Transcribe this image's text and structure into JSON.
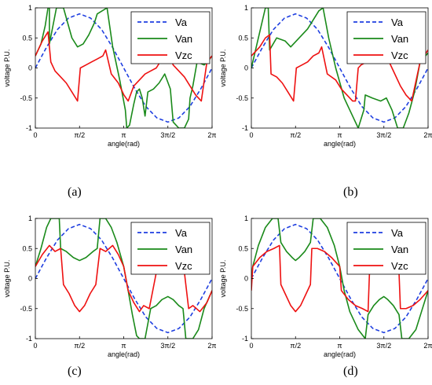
{
  "x_ticks": [
    "0",
    "π/2",
    "π",
    "3π/2",
    "2π"
  ],
  "y_ticks": [
    "1",
    "0.5",
    "0",
    "-0.5",
    "-1"
  ],
  "xlabel": "angle(rad)",
  "ylabel": "voltage P.U.",
  "colors": {
    "Va": "#1f3fe0",
    "Van": "#1a8a1a",
    "Vzc": "#ee1111"
  },
  "panels": [
    {
      "caption": "(a)"
    },
    {
      "caption": "(b)"
    },
    {
      "caption": "(c)"
    },
    {
      "caption": "(d)"
    }
  ],
  "chart_data": [
    {
      "type": "line",
      "panel": "(a)",
      "xlabel": "angle(rad)",
      "ylabel": "voltage P.U.",
      "xlim": [
        0,
        6.2832
      ],
      "ylim": [
        -1,
        1
      ],
      "legend": "top-right",
      "series": [
        {
          "name": "Va",
          "style": "dashed",
          "x": [
            0,
            0.3927,
            0.7854,
            1.1781,
            1.5708,
            1.9635,
            2.3562,
            2.7489,
            3.1416,
            3.5343,
            3.927,
            4.3197,
            4.7124,
            5.1051,
            5.4978,
            5.8905,
            6.2832
          ],
          "y": [
            0,
            0.34,
            0.64,
            0.83,
            0.9,
            0.83,
            0.64,
            0.34,
            0,
            -0.34,
            -0.64,
            -0.83,
            -0.9,
            -0.83,
            -0.64,
            -0.34,
            0
          ]
        },
        {
          "name": "Van",
          "x": [
            0,
            0.2,
            0.35,
            0.45,
            0.5,
            0.5,
            0.75,
            1.0,
            1.3,
            1.5,
            1.7,
            1.9,
            2.1,
            2.2,
            2.55,
            2.75,
            3.0,
            3.2,
            3.25,
            3.35,
            3.5,
            3.6,
            3.7,
            3.8,
            3.9,
            4.0,
            4.2,
            4.4,
            4.6,
            4.8,
            4.9,
            5.1,
            5.3,
            5.45,
            5.5,
            5.6,
            5.75,
            6.0,
            6.2,
            6.2832
          ],
          "y": [
            0.2,
            0.4,
            0.7,
            1.0,
            1.0,
            0.4,
            1.0,
            1.0,
            0.5,
            0.35,
            0.4,
            0.55,
            0.75,
            0.9,
            1.0,
            0.35,
            -0.2,
            -0.7,
            -1.0,
            -0.95,
            -0.6,
            -0.4,
            -0.35,
            -0.5,
            -0.8,
            -0.4,
            -0.35,
            -0.25,
            -0.1,
            -0.35,
            -0.9,
            -1.0,
            -1.0,
            -0.85,
            -0.5,
            -0.3,
            0.1,
            0.05,
            0.15,
            0.2
          ]
        },
        {
          "name": "Vzc",
          "x": [
            0,
            0.25,
            0.45,
            0.55,
            0.7,
            0.9,
            1.1,
            1.3,
            1.5,
            1.6,
            1.8,
            2.0,
            2.2,
            2.4,
            2.5,
            2.7,
            2.95,
            3.15,
            3.3,
            3.5,
            3.7,
            3.9,
            4.1,
            4.3,
            4.5,
            4.7,
            4.9,
            5.1,
            5.3,
            5.5,
            5.7,
            5.9,
            6.1,
            6.2832
          ],
          "y": [
            0.2,
            0.45,
            0.6,
            0.1,
            -0.05,
            -0.15,
            -0.25,
            -0.4,
            -0.55,
            0.0,
            0.05,
            0.1,
            0.15,
            0.2,
            0.3,
            -0.1,
            -0.25,
            -0.45,
            -0.55,
            -0.3,
            -0.2,
            -0.1,
            -0.05,
            0.0,
            0.15,
            0.3,
            0.05,
            -0.05,
            -0.15,
            -0.3,
            -0.45,
            -0.55,
            0.1,
            0.2
          ]
        }
      ]
    },
    {
      "type": "line",
      "panel": "(b)",
      "xlabel": "angle(rad)",
      "ylabel": "voltage P.U.",
      "xlim": [
        0,
        6.2832
      ],
      "ylim": [
        -1,
        1
      ],
      "legend": "top-right",
      "series": [
        {
          "name": "Va",
          "style": "dashed",
          "x": [
            0,
            0.3927,
            0.7854,
            1.1781,
            1.5708,
            1.9635,
            2.3562,
            2.7489,
            3.1416,
            3.5343,
            3.927,
            4.3197,
            4.7124,
            5.1051,
            5.4978,
            5.8905,
            6.2832
          ],
          "y": [
            0,
            0.34,
            0.64,
            0.83,
            0.9,
            0.83,
            0.64,
            0.34,
            0,
            -0.34,
            -0.64,
            -0.83,
            -0.9,
            -0.83,
            -0.64,
            -0.34,
            0
          ]
        },
        {
          "name": "Van",
          "x": [
            0,
            0.15,
            0.35,
            0.5,
            0.6,
            0.65,
            0.9,
            1.2,
            1.4,
            1.6,
            1.8,
            2.0,
            2.2,
            2.4,
            2.55,
            2.75,
            3.0,
            3.3,
            3.6,
            3.8,
            4.0,
            4.05,
            4.3,
            4.6,
            4.8,
            5.0,
            5.2,
            5.4,
            5.6,
            5.8,
            6.0,
            6.2832
          ],
          "y": [
            0.0,
            0.3,
            0.7,
            1.0,
            1.0,
            0.3,
            0.5,
            0.45,
            0.35,
            0.45,
            0.55,
            0.65,
            0.8,
            0.95,
            1.0,
            0.5,
            0.0,
            -0.5,
            -0.8,
            -1.0,
            -0.7,
            -0.45,
            -0.5,
            -0.55,
            -0.5,
            -0.7,
            -1.0,
            -1.0,
            -0.75,
            -0.4,
            0.1,
            0.25
          ]
        },
        {
          "name": "Vzc",
          "x": [
            0,
            0.3,
            0.5,
            0.65,
            0.7,
            0.9,
            1.1,
            1.3,
            1.5,
            1.6,
            1.8,
            2.0,
            2.2,
            2.4,
            2.5,
            2.7,
            3.0,
            3.2,
            3.4,
            3.6,
            3.7,
            3.8,
            3.9,
            4.1,
            4.3,
            4.5,
            4.6,
            4.7,
            4.9,
            5.1,
            5.3,
            5.5,
            5.7,
            6.0,
            6.2832
          ],
          "y": [
            0.2,
            0.35,
            0.5,
            0.55,
            -0.1,
            -0.15,
            -0.25,
            -0.4,
            -0.55,
            0.0,
            0.05,
            0.1,
            0.2,
            0.25,
            0.35,
            -0.1,
            -0.2,
            -0.35,
            -0.45,
            -0.55,
            -0.55,
            0.0,
            0.05,
            0.1,
            0.15,
            0.25,
            0.35,
            0.5,
            0.1,
            -0.1,
            -0.3,
            -0.45,
            -0.55,
            0.1,
            0.3
          ]
        }
      ]
    },
    {
      "type": "line",
      "panel": "(c)",
      "xlabel": "angle(rad)",
      "ylabel": "voltage P.U.",
      "xlim": [
        0,
        6.2832
      ],
      "ylim": [
        -1,
        1
      ],
      "legend": "top-right",
      "series": [
        {
          "name": "Va",
          "style": "dashed",
          "x": [
            0,
            0.3927,
            0.7854,
            1.1781,
            1.5708,
            1.9635,
            2.3562,
            2.7489,
            3.1416,
            3.5343,
            3.927,
            4.3197,
            4.7124,
            5.1051,
            5.4978,
            5.8905,
            6.2832
          ],
          "y": [
            0,
            0.34,
            0.64,
            0.83,
            0.9,
            0.83,
            0.64,
            0.34,
            0,
            -0.34,
            -0.64,
            -0.83,
            -0.9,
            -0.83,
            -0.64,
            -0.34,
            0
          ]
        },
        {
          "name": "Van",
          "x": [
            0,
            0.2,
            0.4,
            0.55,
            0.7,
            0.85,
            0.9,
            1.1,
            1.35,
            1.5708,
            1.8,
            2.05,
            2.2,
            2.3,
            2.5,
            2.7,
            2.9,
            3.1416,
            3.3,
            3.45,
            3.6,
            3.7,
            3.9,
            4.1,
            4.3,
            4.5,
            4.7124,
            4.9,
            5.1,
            5.25,
            5.35,
            5.6,
            5.8,
            6.0,
            6.2832
          ],
          "y": [
            0.2,
            0.5,
            0.85,
            1.0,
            1.0,
            1.0,
            0.5,
            0.45,
            0.35,
            0.3,
            0.35,
            0.45,
            0.5,
            1.0,
            1.0,
            0.85,
            0.6,
            0.2,
            -0.2,
            -0.6,
            -0.95,
            -1.0,
            -1.0,
            -0.5,
            -0.45,
            -0.35,
            -0.3,
            -0.35,
            -0.45,
            -0.5,
            -1.0,
            -1.0,
            -0.85,
            -0.5,
            -0.2
          ]
        },
        {
          "name": "Vzc",
          "x": [
            0,
            0.25,
            0.5,
            0.7,
            0.9,
            1.0,
            1.2,
            1.4,
            1.5708,
            1.75,
            1.95,
            2.15,
            2.3,
            2.5,
            2.75,
            2.95,
            3.1416,
            3.3,
            3.5,
            3.7,
            3.85,
            4.05,
            4.3,
            4.5,
            4.7124,
            4.9,
            5.1,
            5.3,
            5.45,
            5.6,
            5.85,
            6.1,
            6.2832
          ],
          "y": [
            0.2,
            0.4,
            0.55,
            0.45,
            0.5,
            -0.1,
            -0.25,
            -0.45,
            -0.55,
            -0.45,
            -0.25,
            -0.1,
            0.5,
            0.45,
            0.55,
            0.4,
            0.2,
            -0.2,
            -0.4,
            -0.55,
            -0.45,
            -0.5,
            0.1,
            0.25,
            0.55,
            0.35,
            0.25,
            0.1,
            -0.5,
            -0.45,
            -0.55,
            -0.4,
            -0.2
          ]
        }
      ]
    },
    {
      "type": "line",
      "panel": "(d)",
      "xlabel": "angle(rad)",
      "ylabel": "voltage P.U.",
      "xlim": [
        0,
        6.2832
      ],
      "ylim": [
        -1,
        1
      ],
      "legend": "top-right",
      "series": [
        {
          "name": "Va",
          "style": "dashed",
          "x": [
            0,
            0.3927,
            0.7854,
            1.1781,
            1.5708,
            1.9635,
            2.3562,
            2.7489,
            3.1416,
            3.5343,
            3.927,
            4.3197,
            4.7124,
            5.1051,
            5.4978,
            5.8905,
            6.2832
          ],
          "y": [
            0,
            0.34,
            0.64,
            0.83,
            0.9,
            0.83,
            0.64,
            0.34,
            0,
            -0.34,
            -0.64,
            -0.83,
            -0.9,
            -0.83,
            -0.64,
            -0.34,
            0
          ]
        },
        {
          "name": "Van",
          "x": [
            0,
            0.05,
            0.25,
            0.5,
            0.75,
            0.95,
            1.05,
            1.25,
            1.45,
            1.5708,
            1.7,
            1.9,
            2.1,
            2.2,
            2.45,
            2.7,
            2.95,
            3.1416,
            3.3,
            3.5,
            3.8,
            4.05,
            4.15,
            4.35,
            4.55,
            4.7124,
            4.85,
            5.05,
            5.25,
            5.35,
            5.6,
            5.85,
            6.05,
            6.2832
          ],
          "y": [
            0.0,
            0.2,
            0.55,
            0.85,
            1.0,
            1.0,
            0.6,
            0.45,
            0.35,
            0.3,
            0.35,
            0.45,
            0.6,
            1.0,
            1.0,
            0.85,
            0.55,
            0.2,
            -0.2,
            -0.55,
            -0.85,
            -1.0,
            -0.6,
            -0.45,
            -0.35,
            -0.3,
            -0.35,
            -0.45,
            -0.6,
            -1.0,
            -1.0,
            -0.85,
            -0.55,
            -0.2
          ]
        },
        {
          "name": "Vzc",
          "x": [
            0,
            0.05,
            0.3,
            0.55,
            0.8,
            1.0,
            1.05,
            1.2,
            1.4,
            1.5708,
            1.75,
            1.95,
            2.1,
            2.15,
            2.35,
            2.6,
            2.85,
            3.1416,
            3.2,
            3.45,
            3.7,
            3.95,
            4.15,
            4.2,
            4.35,
            4.55,
            4.7124,
            4.85,
            5.05,
            5.25,
            5.3,
            5.5,
            5.75,
            6.0,
            6.2832
          ],
          "y": [
            -0.2,
            0.2,
            0.35,
            0.45,
            0.5,
            0.55,
            -0.1,
            -0.25,
            -0.45,
            -0.55,
            -0.45,
            -0.25,
            -0.1,
            0.5,
            0.5,
            0.45,
            0.35,
            0.2,
            -0.2,
            -0.35,
            -0.45,
            -0.5,
            -0.55,
            0.1,
            0.25,
            0.45,
            0.55,
            0.45,
            0.25,
            0.1,
            -0.5,
            -0.5,
            -0.45,
            -0.35,
            -0.2
          ]
        }
      ]
    }
  ]
}
